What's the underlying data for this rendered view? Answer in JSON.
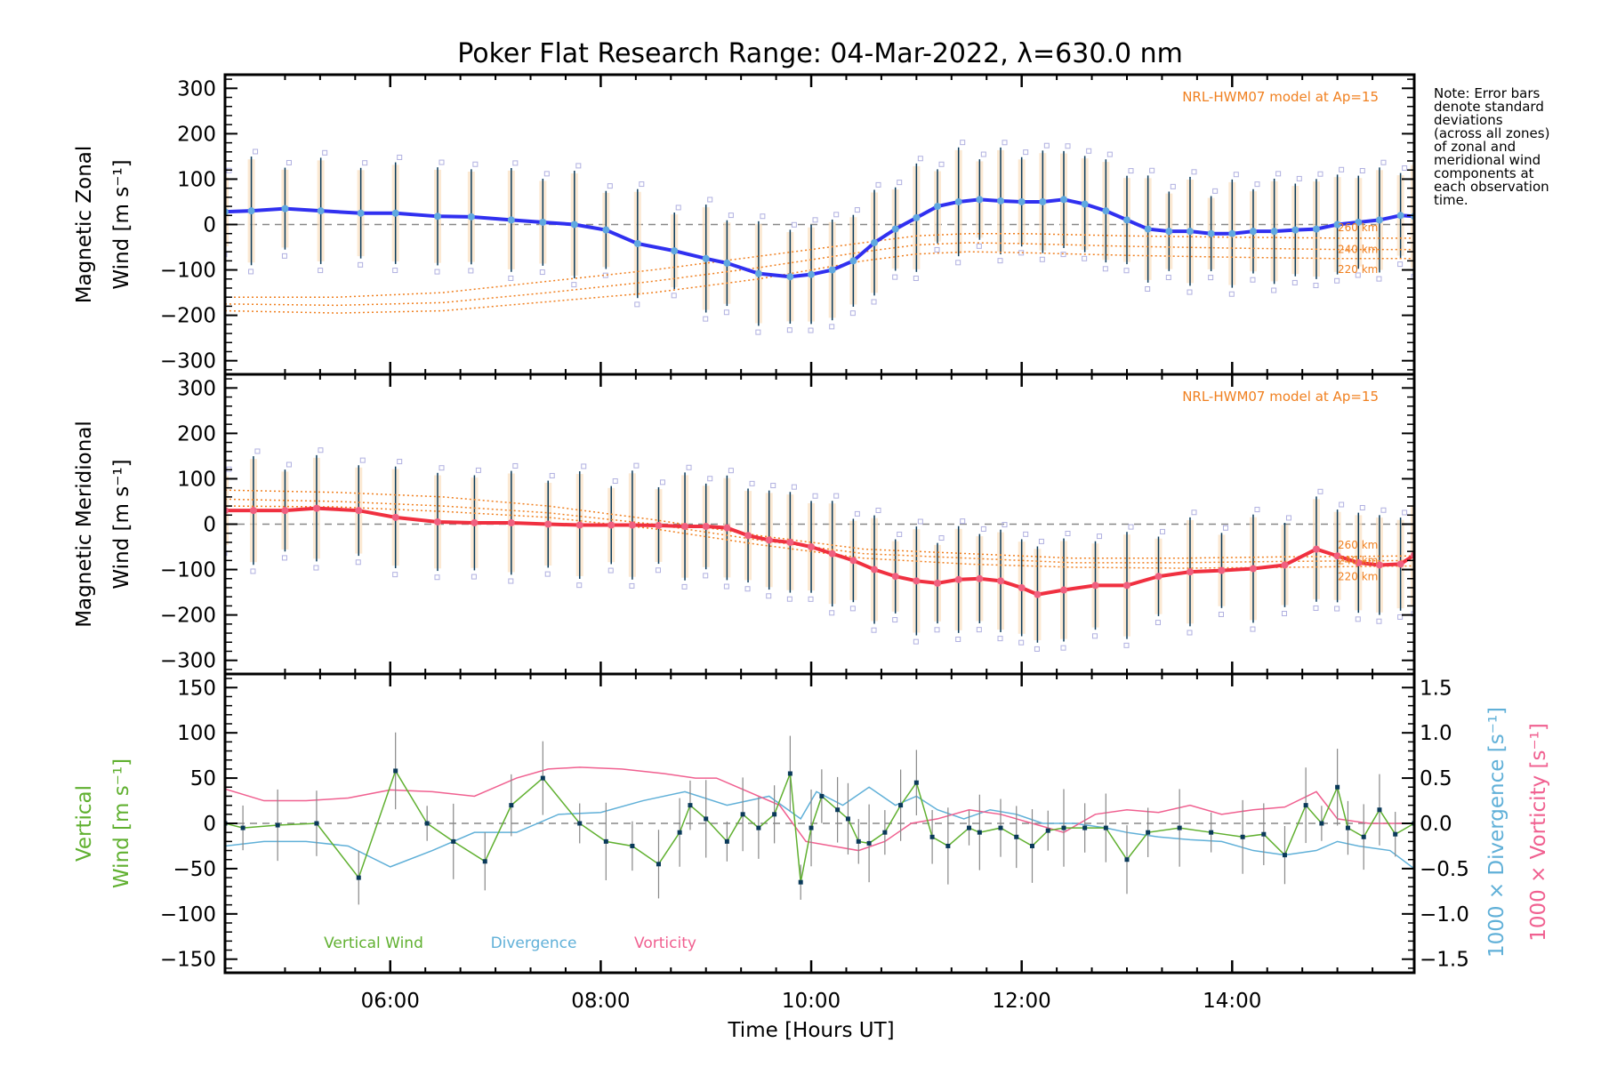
{
  "chart_data": [
    {
      "type": "line",
      "panel": "zonal",
      "title": "Poker Flat Research Range: 04-Mar-2022, λ=630.0 nm",
      "ylabel": [
        "Magnetic Zonal",
        "Wind [m s⁻¹]"
      ],
      "ylim": [
        -330,
        330
      ],
      "yticks": [
        300,
        200,
        100,
        0,
        -100,
        -200,
        -300
      ],
      "xlim": [
        4.43,
        15.73
      ],
      "model_label": "NRL-HWM07 model at Ap=15",
      "model_altitudes": [
        "260 km",
        "240 km",
        "220 km"
      ],
      "series": [
        {
          "name": "Magnetic Zonal Wind",
          "color": "#3030f0",
          "x": [
            4.43,
            4.68,
            5.0,
            5.34,
            5.72,
            6.05,
            6.45,
            6.77,
            7.15,
            7.45,
            7.75,
            8.05,
            8.35,
            8.7,
            9.0,
            9.2,
            9.5,
            9.8,
            10.0,
            10.2,
            10.4,
            10.6,
            10.8,
            11.0,
            11.2,
            11.4,
            11.6,
            11.8,
            12.0,
            12.2,
            12.4,
            12.6,
            12.8,
            13.0,
            13.2,
            13.4,
            13.6,
            13.8,
            14.0,
            14.2,
            14.4,
            14.6,
            14.8,
            15.0,
            15.2,
            15.4,
            15.6,
            15.73
          ],
          "y": [
            28,
            30,
            35,
            30,
            25,
            25,
            18,
            17,
            10,
            5,
            0,
            -12,
            -42,
            -58,
            -75,
            -85,
            -108,
            -115,
            -110,
            -100,
            -80,
            -40,
            -10,
            15,
            40,
            50,
            55,
            52,
            50,
            50,
            55,
            45,
            30,
            10,
            -10,
            -15,
            -15,
            -20,
            -20,
            -15,
            -15,
            -12,
            -10,
            0,
            5,
            10,
            20,
            18
          ]
        },
        {
          "name": "HWM07 260 km",
          "color": "#f08020",
          "x": [
            4.43,
            5.5,
            6.5,
            7.5,
            8.5,
            9.5,
            10.5,
            11.0,
            11.5,
            12.0,
            13.0,
            14.0,
            15.0,
            15.73
          ],
          "y": [
            -160,
            -160,
            -150,
            -125,
            -100,
            -70,
            -40,
            -25,
            -20,
            -20,
            -25,
            -28,
            -30,
            -30
          ]
        },
        {
          "name": "HWM07 240 km",
          "color": "#f08020",
          "x": [
            4.43,
            5.5,
            6.5,
            7.5,
            8.5,
            9.5,
            10.5,
            11.0,
            11.5,
            12.0,
            13.0,
            14.0,
            15.0,
            15.73
          ],
          "y": [
            -175,
            -178,
            -172,
            -150,
            -125,
            -95,
            -60,
            -45,
            -40,
            -42,
            -48,
            -52,
            -55,
            -55
          ]
        },
        {
          "name": "HWM07 220 km",
          "color": "#f08020",
          "x": [
            4.43,
            5.5,
            6.5,
            7.5,
            8.5,
            9.5,
            10.5,
            11.0,
            11.5,
            12.0,
            13.0,
            14.0,
            15.0,
            15.73
          ],
          "y": [
            -190,
            -195,
            -190,
            -170,
            -150,
            -120,
            -80,
            -65,
            -60,
            -62,
            -68,
            -72,
            -75,
            -75
          ]
        }
      ]
    },
    {
      "type": "line",
      "panel": "meridional",
      "ylabel": [
        "Magnetic Meridional",
        "Wind [m s⁻¹]"
      ],
      "ylim": [
        -330,
        330
      ],
      "yticks": [
        300,
        200,
        100,
        0,
        -100,
        -200,
        -300
      ],
      "xlim": [
        4.43,
        15.73
      ],
      "model_label": "NRL-HWM07 model at Ap=15",
      "model_altitudes": [
        "260 km",
        "240 km",
        "220 km"
      ],
      "series": [
        {
          "name": "Magnetic Meridional Wind",
          "color": "#f03040",
          "x": [
            4.43,
            4.7,
            5.0,
            5.3,
            5.7,
            6.05,
            6.45,
            6.8,
            7.15,
            7.5,
            7.8,
            8.1,
            8.3,
            8.55,
            8.8,
            9.0,
            9.2,
            9.4,
            9.6,
            9.8,
            10.0,
            10.2,
            10.4,
            10.6,
            10.8,
            11.0,
            11.2,
            11.4,
            11.6,
            11.8,
            12.0,
            12.15,
            12.4,
            12.7,
            13.0,
            13.3,
            13.6,
            13.9,
            14.2,
            14.5,
            14.8,
            15.0,
            15.2,
            15.4,
            15.6,
            15.73
          ],
          "y": [
            30,
            30,
            30,
            35,
            30,
            15,
            5,
            3,
            3,
            0,
            -2,
            -2,
            -2,
            -3,
            -5,
            -5,
            -8,
            -25,
            -35,
            -40,
            -50,
            -65,
            -80,
            -100,
            -115,
            -125,
            -130,
            -122,
            -120,
            -125,
            -140,
            -155,
            -145,
            -135,
            -135,
            -115,
            -105,
            -102,
            -98,
            -90,
            -55,
            -70,
            -85,
            -90,
            -88,
            -68
          ]
        },
        {
          "name": "HWM07 260 km",
          "color": "#f08020",
          "x": [
            4.43,
            5.5,
            6.5,
            7.5,
            8.5,
            9.5,
            10.5,
            11.5,
            12.5,
            13.5,
            14.5,
            15.73
          ],
          "y": [
            75,
            70,
            60,
            40,
            10,
            -25,
            -55,
            -65,
            -75,
            -75,
            -72,
            -70
          ]
        },
        {
          "name": "HWM07 240 km",
          "color": "#f08020",
          "x": [
            4.43,
            5.5,
            6.5,
            7.5,
            8.5,
            9.5,
            10.5,
            11.5,
            12.5,
            13.5,
            14.5,
            15.73
          ],
          "y": [
            55,
            50,
            40,
            25,
            0,
            -35,
            -65,
            -75,
            -85,
            -85,
            -82,
            -80
          ]
        },
        {
          "name": "HWM07 220 km",
          "color": "#f08020",
          "x": [
            4.43,
            5.5,
            6.5,
            7.5,
            8.5,
            9.5,
            10.5,
            11.5,
            12.5,
            13.5,
            14.5,
            15.73
          ],
          "y": [
            40,
            38,
            28,
            15,
            -10,
            -45,
            -75,
            -88,
            -95,
            -97,
            -95,
            -92
          ]
        }
      ]
    },
    {
      "type": "line",
      "panel": "vertical",
      "ylabel": [
        "Vertical",
        "Wind [m s⁻¹]"
      ],
      "ylim": [
        -165,
        165
      ],
      "yticks": [
        150,
        100,
        50,
        0,
        -50,
        -100,
        -150
      ],
      "y2label_divergence": "1000 × Divergence [s⁻¹]",
      "y2label_vorticity": "1000 × Vorticity [s⁻¹]",
      "y2lim": [
        -1.65,
        1.65
      ],
      "y2ticks": [
        "1.5",
        "1.0",
        "0.5",
        "0.0",
        "−0.5",
        "−1.0",
        "−1.5"
      ],
      "xlabel": "Time [Hours UT]",
      "xticks": [
        "06:00",
        "08:00",
        "10:00",
        "12:00",
        "14:00"
      ],
      "xtick_values": [
        6,
        8,
        10,
        12,
        14
      ],
      "xlim": [
        4.43,
        15.73
      ],
      "legend": [
        "Vertical Wind",
        "Divergence",
        "Vorticity"
      ],
      "series": [
        {
          "name": "Vertical Wind",
          "color": "#60b030",
          "x": [
            4.43,
            4.6,
            4.93,
            5.3,
            5.7,
            6.05,
            6.35,
            6.6,
            6.9,
            7.15,
            7.45,
            7.8,
            8.05,
            8.3,
            8.55,
            8.75,
            8.85,
            9.0,
            9.2,
            9.35,
            9.5,
            9.65,
            9.8,
            9.9,
            10.0,
            10.1,
            10.25,
            10.35,
            10.45,
            10.55,
            10.7,
            10.85,
            11.0,
            11.15,
            11.3,
            11.5,
            11.6,
            11.8,
            11.95,
            12.1,
            12.25,
            12.4,
            12.6,
            12.8,
            13.0,
            13.2,
            13.5,
            13.8,
            14.1,
            14.3,
            14.5,
            14.7,
            14.85,
            15.0,
            15.1,
            15.25,
            15.4,
            15.55,
            15.73
          ],
          "y": [
            0,
            -5,
            -2,
            0,
            -60,
            58,
            0,
            -20,
            -42,
            20,
            50,
            0,
            -20,
            -25,
            -45,
            -10,
            20,
            5,
            -20,
            10,
            -5,
            10,
            55,
            -65,
            -5,
            30,
            15,
            5,
            -20,
            -22,
            -10,
            20,
            45,
            -15,
            -25,
            -5,
            -10,
            -5,
            -15,
            -25,
            -8,
            -5,
            -5,
            -5,
            -40,
            -10,
            -5,
            -10,
            -15,
            -12,
            -35,
            20,
            0,
            40,
            -5,
            -15,
            15,
            -12,
            0
          ]
        },
        {
          "name": "Divergence",
          "color": "#60b0d8",
          "x": [
            4.43,
            4.8,
            5.2,
            5.6,
            6.0,
            6.4,
            6.8,
            7.2,
            7.6,
            8.0,
            8.4,
            8.8,
            9.2,
            9.6,
            9.9,
            10.05,
            10.3,
            10.55,
            10.8,
            11.0,
            11.2,
            11.45,
            11.7,
            11.95,
            12.2,
            12.5,
            12.8,
            13.0,
            13.3,
            13.6,
            13.9,
            14.2,
            14.5,
            14.8,
            15.0,
            15.2,
            15.5,
            15.73
          ],
          "y": [
            -0.25,
            -0.2,
            -0.2,
            -0.25,
            -0.48,
            -0.3,
            -0.1,
            -0.1,
            0.1,
            0.12,
            0.25,
            0.35,
            0.2,
            0.3,
            0.05,
            0.35,
            0.2,
            0.4,
            0.2,
            0.3,
            0.15,
            0.05,
            0.15,
            0.1,
            0.0,
            0.0,
            -0.05,
            -0.1,
            -0.15,
            -0.18,
            -0.2,
            -0.3,
            -0.35,
            -0.3,
            -0.2,
            -0.25,
            -0.3,
            -0.5
          ]
        },
        {
          "name": "Vorticity",
          "color": "#f06090",
          "x": [
            4.43,
            4.8,
            5.2,
            5.6,
            6.0,
            6.4,
            6.8,
            7.2,
            7.5,
            7.8,
            8.2,
            8.6,
            8.9,
            9.1,
            9.4,
            9.7,
            9.95,
            10.2,
            10.45,
            10.7,
            10.95,
            11.2,
            11.5,
            11.8,
            12.1,
            12.4,
            12.7,
            13.0,
            13.3,
            13.6,
            13.9,
            14.2,
            14.5,
            14.8,
            15.0,
            15.3,
            15.5,
            15.73
          ],
          "y": [
            0.38,
            0.25,
            0.25,
            0.28,
            0.37,
            0.35,
            0.3,
            0.5,
            0.6,
            0.62,
            0.6,
            0.55,
            0.5,
            0.5,
            0.35,
            0.2,
            -0.2,
            -0.25,
            -0.3,
            -0.2,
            0.0,
            0.05,
            0.15,
            0.1,
            0.0,
            -0.1,
            0.1,
            0.15,
            0.12,
            0.2,
            0.1,
            0.15,
            0.18,
            0.35,
            0.05,
            0.0,
            0.0,
            0.0
          ]
        }
      ]
    }
  ],
  "note": "Note: Error bars denote standard deviations (across all zones) of zonal and meridional wind components at each observation time.",
  "note_lines": [
    "Note: Error bars",
    "denote standard",
    "deviations",
    "(across all zones)",
    "of zonal and",
    "meridional wind",
    "components at",
    "each observation",
    "time."
  ]
}
